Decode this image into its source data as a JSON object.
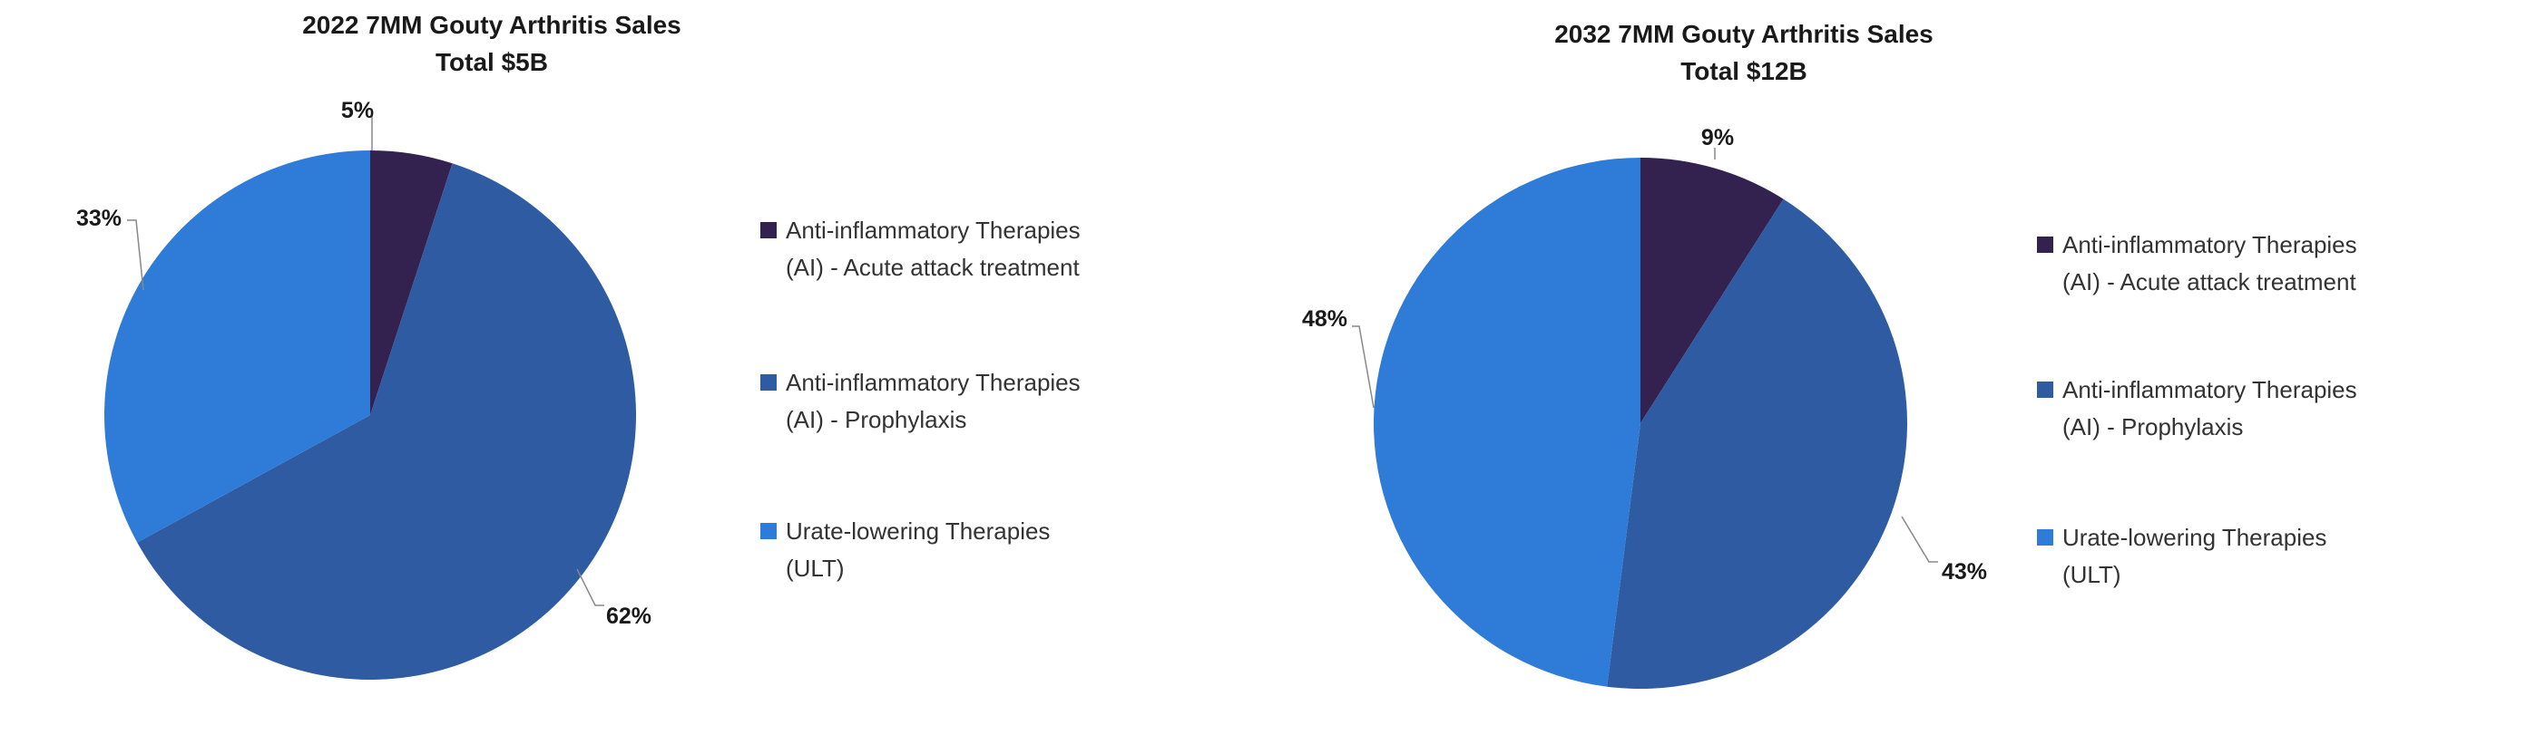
{
  "chart_data": [
    {
      "type": "pie",
      "title": [
        "2022 7MM Gouty Arthritis Sales",
        "Total $5B"
      ],
      "categories": [
        "Anti-inflammatory Therapies (AI) - Acute attack treatment",
        "Anti-inflammatory Therapies (AI) - Prophylaxis",
        "Urate-lowering Therapies (ULT)"
      ],
      "legend_lines": [
        [
          "Anti-inflammatory Therapies",
          "(AI) - Acute attack treatment"
        ],
        [
          "Anti-inflammatory Therapies",
          "(AI) - Prophylaxis"
        ],
        [
          "Urate-lowering Therapies",
          "(ULT)"
        ]
      ],
      "values": [
        5,
        62,
        33
      ],
      "labels": [
        "5%",
        "62%",
        "33%"
      ],
      "colors": [
        "#33214F",
        "#2F5BA3",
        "#2E7BD8"
      ],
      "start": "12 o'clock, clockwise",
      "legend": "right"
    },
    {
      "type": "pie",
      "title": [
        "2032 7MM Gouty Arthritis Sales",
        "Total $12B"
      ],
      "categories": [
        "Anti-inflammatory Therapies (AI) - Acute attack treatment",
        "Anti-inflammatory Therapies (AI) - Prophylaxis",
        "Urate-lowering Therapies (ULT)"
      ],
      "legend_lines": [
        [
          "Anti-inflammatory Therapies",
          "(AI) - Acute attack treatment"
        ],
        [
          "Anti-inflammatory Therapies",
          "(AI) - Prophylaxis"
        ],
        [
          "Urate-lowering Therapies",
          "(ULT)"
        ]
      ],
      "values": [
        9,
        43,
        48
      ],
      "labels": [
        "9%",
        "43%",
        "48%"
      ],
      "colors": [
        "#33214F",
        "#2F5BA3",
        "#2E7BD8"
      ],
      "start": "12 o'clock, clockwise",
      "legend": "right"
    }
  ]
}
